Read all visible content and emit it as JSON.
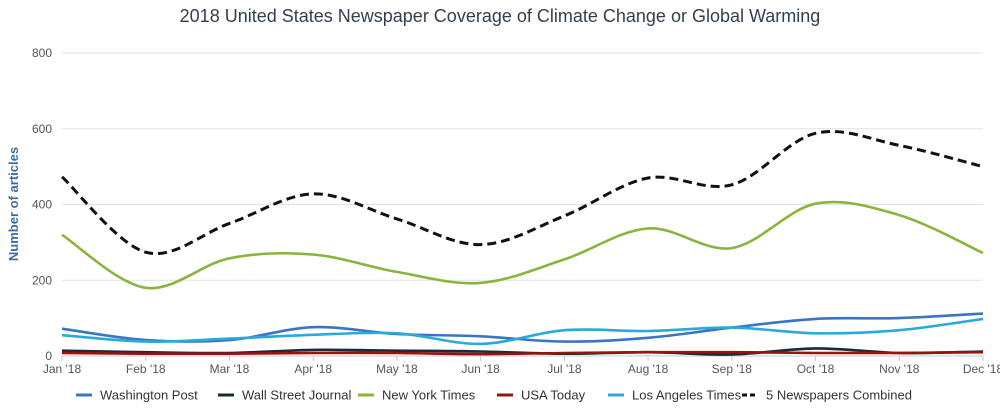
{
  "chart_data": {
    "type": "line",
    "title": "2018 United States Newspaper Coverage of Climate Change or Global Warming",
    "xlabel": "",
    "ylabel": "Number of articles",
    "ylim": [
      0,
      800
    ],
    "yticks": [
      "0",
      "200",
      "400",
      "600",
      "800"
    ],
    "categories": [
      "Jan '18",
      "Feb '18",
      "Mar '18",
      "Apr '18",
      "May '18",
      "Jun '18",
      "Jul '18",
      "Aug '18",
      "Sep '18",
      "Oct '18",
      "Nov '18",
      "Dec '18"
    ],
    "grid": true,
    "legend_position": "bottom",
    "series": [
      {
        "name": "Washington Post",
        "color": "#3a75c4",
        "dash": false,
        "values": [
          72,
          42,
          42,
          76,
          58,
          52,
          38,
          48,
          75,
          98,
          100,
          112
        ]
      },
      {
        "name": "Wall Street Journal",
        "color": "#1a2a3a",
        "dash": false,
        "values": [
          14,
          10,
          8,
          16,
          14,
          12,
          6,
          10,
          4,
          20,
          8,
          12
        ]
      },
      {
        "name": "New York Times",
        "color": "#8ab43c",
        "dash": false,
        "values": [
          320,
          180,
          258,
          268,
          222,
          193,
          255,
          337,
          285,
          402,
          372,
          272
        ]
      },
      {
        "name": "USA Today",
        "color": "#9b1010",
        "dash": false,
        "values": [
          8,
          6,
          6,
          8,
          8,
          5,
          8,
          10,
          10,
          8,
          8,
          10
        ]
      },
      {
        "name": "Los Angeles Times",
        "color": "#2aaad8",
        "dash": false,
        "values": [
          55,
          38,
          46,
          56,
          60,
          32,
          68,
          66,
          75,
          60,
          68,
          98
        ]
      },
      {
        "name": "5 Newspapers Combined",
        "color": "#111111",
        "dash": true,
        "values": [
          473,
          274,
          350,
          428,
          362,
          294,
          370,
          470,
          452,
          588,
          556,
          500
        ]
      }
    ]
  }
}
